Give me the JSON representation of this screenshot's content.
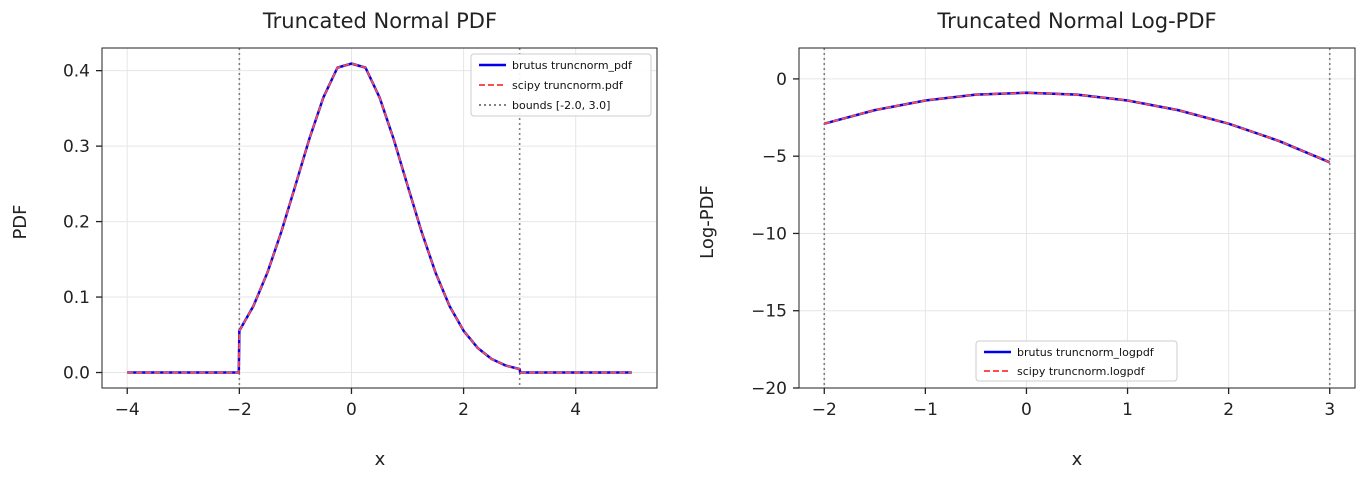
{
  "colors": {
    "brutus": "#0000ee",
    "scipy": "#ff4c4c",
    "bounds": "#808080",
    "grid": "#e6e6e6"
  },
  "chart_data": [
    {
      "type": "line",
      "title": "Truncated Normal PDF",
      "xlabel": "x",
      "ylabel": "PDF",
      "xlim": [
        -4.45,
        5.45
      ],
      "ylim": [
        -0.0205,
        0.43
      ],
      "xticks": [
        -4,
        -2,
        0,
        2,
        4
      ],
      "xtick_labels": [
        "−4",
        "−2",
        "0",
        "2",
        "4"
      ],
      "yticks": [
        0.0,
        0.1,
        0.2,
        0.3,
        0.4
      ],
      "ytick_labels": [
        "0.0",
        "0.1",
        "0.2",
        "0.3",
        "0.4"
      ],
      "grid": true,
      "legend_position": "top-right",
      "bounds": [
        -2.0,
        3.0
      ],
      "x": [
        -4.0,
        -3.0,
        -2.01,
        -2.0,
        -1.75,
        -1.5,
        -1.25,
        -1.0,
        -0.75,
        -0.5,
        -0.25,
        0.0,
        0.25,
        0.5,
        0.75,
        1.0,
        1.25,
        1.5,
        1.75,
        2.0,
        2.25,
        2.5,
        2.75,
        3.0,
        3.01,
        4.0,
        5.0
      ],
      "series": [
        {
          "name": "brutus truncnorm_pdf",
          "style": "solid",
          "y": [
            0.0,
            0.0,
            0.0,
            0.0553,
            0.088,
            0.1323,
            0.1867,
            0.2479,
            0.3099,
            0.3647,
            0.404,
            0.4093,
            0.404,
            0.3647,
            0.3099,
            0.2479,
            0.1867,
            0.1323,
            0.088,
            0.0553,
            0.0327,
            0.0179,
            0.0093,
            0.0045,
            0.0,
            0.0,
            0.0
          ]
        },
        {
          "name": "scipy truncnorm.pdf",
          "style": "dashed",
          "y": [
            0.0,
            0.0,
            0.0,
            0.0553,
            0.088,
            0.1323,
            0.1867,
            0.2479,
            0.3099,
            0.3647,
            0.404,
            0.4093,
            0.404,
            0.3647,
            0.3099,
            0.2479,
            0.1867,
            0.1323,
            0.088,
            0.0553,
            0.0327,
            0.0179,
            0.0093,
            0.0045,
            0.0,
            0.0,
            0.0
          ]
        }
      ],
      "bounds_legend": "bounds [-2.0, 3.0]"
    },
    {
      "type": "line",
      "title": "Truncated Normal Log-PDF",
      "xlabel": "x",
      "ylabel": "Log-PDF",
      "xlim": [
        -2.25,
        3.25
      ],
      "ylim": [
        -20,
        2
      ],
      "xticks": [
        -2,
        -1,
        0,
        1,
        2,
        3
      ],
      "xtick_labels": [
        "−2",
        "−1",
        "0",
        "1",
        "2",
        "3"
      ],
      "yticks": [
        0,
        -5,
        -10,
        -15,
        -20
      ],
      "ytick_labels": [
        "0",
        "−5",
        "−10",
        "−15",
        "−20"
      ],
      "grid": true,
      "legend_position": "lower center",
      "bounds": [
        -2.0,
        3.0
      ],
      "x": [
        -2.0,
        -1.5,
        -1.0,
        -0.5,
        0.0,
        0.5,
        1.0,
        1.5,
        2.0,
        2.5,
        3.0
      ],
      "series": [
        {
          "name": "brutus truncnorm_logpdf",
          "style": "solid",
          "y": [
            -2.895,
            -2.02,
            -1.395,
            -1.02,
            -0.895,
            -1.02,
            -1.395,
            -2.02,
            -2.895,
            -4.02,
            -5.395
          ]
        },
        {
          "name": "scipy truncnorm.logpdf",
          "style": "dashed",
          "y": [
            -2.895,
            -2.02,
            -1.395,
            -1.02,
            -0.895,
            -1.02,
            -1.395,
            -2.02,
            -2.895,
            -4.02,
            -5.395
          ]
        }
      ]
    }
  ]
}
